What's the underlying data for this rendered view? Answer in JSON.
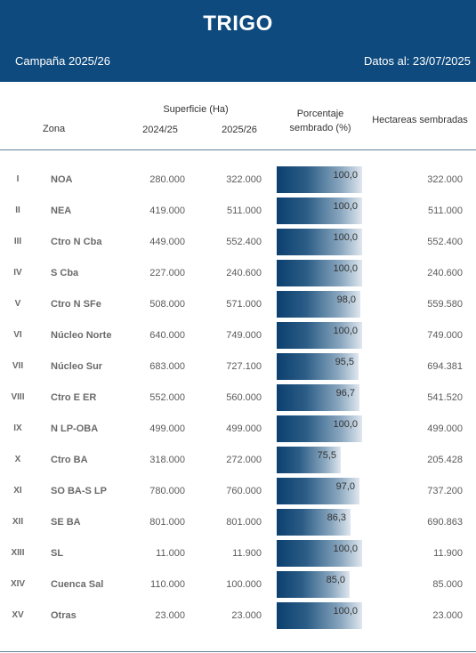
{
  "header": {
    "title": "TRIGO",
    "campaign": "Campaña 2025/26",
    "date": "Datos al: 23/07/2025"
  },
  "columns": {
    "zona": "Zona",
    "superficie": "Superficie (Ha)",
    "year1": "2024/25",
    "year2": "2025/26",
    "porcentaje": "Porcentaje sembrado (%)",
    "hectareas": "Hectareas sembradas"
  },
  "rows": [
    {
      "roman": "I",
      "zona": "NOA",
      "y1": "280.000",
      "y2": "322.000",
      "pct": "100,0",
      "pct_value": 100.0,
      "ha": "322.000"
    },
    {
      "roman": "II",
      "zona": "NEA",
      "y1": "419.000",
      "y2": "511.000",
      "pct": "100,0",
      "pct_value": 100.0,
      "ha": "511.000"
    },
    {
      "roman": "III",
      "zona": "Ctro N Cba",
      "y1": "449.000",
      "y2": "552.400",
      "pct": "100,0",
      "pct_value": 100.0,
      "ha": "552.400"
    },
    {
      "roman": "IV",
      "zona": "S Cba",
      "y1": "227.000",
      "y2": "240.600",
      "pct": "100,0",
      "pct_value": 100.0,
      "ha": "240.600"
    },
    {
      "roman": "V",
      "zona": "Ctro N SFe",
      "y1": "508.000",
      "y2": "571.000",
      "pct": "98,0",
      "pct_value": 98.0,
      "ha": "559.580"
    },
    {
      "roman": "VI",
      "zona": "Núcleo Norte",
      "y1": "640.000",
      "y2": "749.000",
      "pct": "100,0",
      "pct_value": 100.0,
      "ha": "749.000"
    },
    {
      "roman": "VII",
      "zona": "Núcleo Sur",
      "y1": "683.000",
      "y2": "727.100",
      "pct": "95,5",
      "pct_value": 95.5,
      "ha": "694.381"
    },
    {
      "roman": "VIII",
      "zona": "Ctro E ER",
      "y1": "552.000",
      "y2": "560.000",
      "pct": "96,7",
      "pct_value": 96.7,
      "ha": "541.520"
    },
    {
      "roman": "IX",
      "zona": "N LP-OBA",
      "y1": "499.000",
      "y2": "499.000",
      "pct": "100,0",
      "pct_value": 100.0,
      "ha": "499.000"
    },
    {
      "roman": "X",
      "zona": "Ctro BA",
      "y1": "318.000",
      "y2": "272.000",
      "pct": "75,5",
      "pct_value": 75.5,
      "ha": "205.428"
    },
    {
      "roman": "XI",
      "zona": "SO BA-S LP",
      "y1": "780.000",
      "y2": "760.000",
      "pct": "97,0",
      "pct_value": 97.0,
      "ha": "737.200"
    },
    {
      "roman": "XII",
      "zona": "SE BA",
      "y1": "801.000",
      "y2": "801.000",
      "pct": "86,3",
      "pct_value": 86.3,
      "ha": "690.863"
    },
    {
      "roman": "XIII",
      "zona": "SL",
      "y1": "11.000",
      "y2": "11.900",
      "pct": "100,0",
      "pct_value": 100.0,
      "ha": "11.900"
    },
    {
      "roman": "XIV",
      "zona": "Cuenca Sal",
      "y1": "110.000",
      "y2": "100.000",
      "pct": "85,0",
      "pct_value": 85.0,
      "ha": "85.000"
    },
    {
      "roman": "XV",
      "zona": "Otras",
      "y1": "23.000",
      "y2": "23.000",
      "pct": "100,0",
      "pct_value": 100.0,
      "ha": "23.000"
    }
  ],
  "colors": {
    "header_bg": "#0e4a7e",
    "bar_dark": "#0b3f6e",
    "bar_light": "#dfe7ee"
  }
}
